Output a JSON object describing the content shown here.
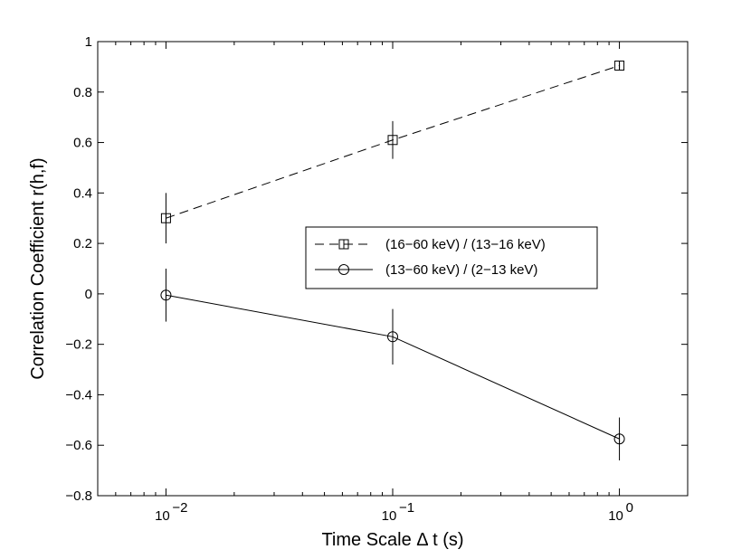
{
  "chart_data": {
    "type": "line",
    "xscale": "log",
    "xlim": [
      0.005,
      2
    ],
    "ylim": [
      -0.8,
      1
    ],
    "xlabel": "Time Scale Δ t  (s)",
    "ylabel": "Correlation Coefficient   r(h,f)",
    "x_ticks": [
      {
        "value": 0.01,
        "base": "10",
        "exp": "−2"
      },
      {
        "value": 0.1,
        "base": "10",
        "exp": "−1"
      },
      {
        "value": 1,
        "base": "10",
        "exp": "0"
      }
    ],
    "y_ticks": [
      {
        "value": 1,
        "label": "1"
      },
      {
        "value": 0.8,
        "label": "0.8"
      },
      {
        "value": 0.6,
        "label": "0.6"
      },
      {
        "value": 0.4,
        "label": "0.4"
      },
      {
        "value": 0.2,
        "label": "0.2"
      },
      {
        "value": 0,
        "label": "0"
      },
      {
        "value": -0.2,
        "label": "−0.2"
      },
      {
        "value": -0.4,
        "label": "−0.4"
      },
      {
        "value": -0.6,
        "label": "−0.6"
      },
      {
        "value": -0.8,
        "label": "−0.8"
      }
    ],
    "series": [
      {
        "name": "(16−60 keV) / (13−16 keV)",
        "marker": "square",
        "linestyle": "dashed",
        "x": [
          0.01,
          0.1,
          1
        ],
        "y": [
          0.3,
          0.61,
          0.905
        ],
        "err": [
          0.1,
          0.075,
          0.015
        ]
      },
      {
        "name": "(13−60 keV) / (2−13 keV)",
        "marker": "circle",
        "linestyle": "solid",
        "x": [
          0.01,
          0.1,
          1
        ],
        "y": [
          -0.005,
          -0.17,
          -0.575
        ],
        "err": [
          0.105,
          0.11,
          0.085
        ]
      }
    ],
    "legend_position": "center-right"
  }
}
